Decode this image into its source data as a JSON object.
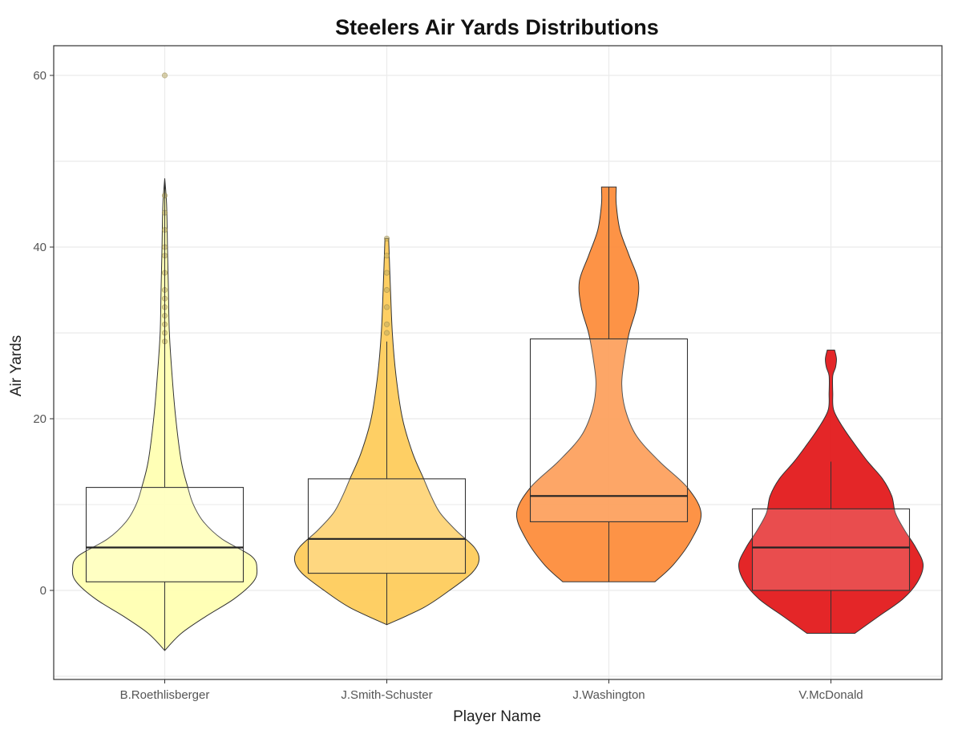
{
  "chart_data": {
    "type": "violin",
    "title": "Steelers Air Yards Distributions",
    "xlabel": "Player Name",
    "ylabel": "Air Yards",
    "ylim": [
      -10,
      63
    ],
    "yticks": [
      0,
      20,
      40,
      60
    ],
    "grid": true,
    "categories": [
      "B.Roethlisberger",
      "J.Smith-Schuster",
      "J.Washington",
      "V.McDonald"
    ],
    "colors": [
      "#FFFFB2",
      "#FECC5C",
      "#FD8D3C",
      "#E31A1C"
    ],
    "distributions": [
      {
        "name": "B.Roethlisberger",
        "min": -7,
        "q1": 1,
        "median": 5,
        "q3": 12,
        "whisker_high": 48,
        "max": 60,
        "outliers": [
          29,
          30,
          31,
          32,
          33,
          34,
          35,
          37,
          39,
          40,
          42,
          44,
          46,
          60
        ],
        "density": [
          [
            -7,
            0.0
          ],
          [
            -5,
            0.18
          ],
          [
            -3,
            0.45
          ],
          [
            -1,
            0.75
          ],
          [
            1,
            0.96
          ],
          [
            2.5,
            1.0
          ],
          [
            4,
            0.94
          ],
          [
            6,
            0.62
          ],
          [
            8,
            0.42
          ],
          [
            10,
            0.31
          ],
          [
            12,
            0.25
          ],
          [
            15,
            0.18
          ],
          [
            20,
            0.12
          ],
          [
            25,
            0.08
          ],
          [
            30,
            0.05
          ],
          [
            35,
            0.04
          ],
          [
            40,
            0.03
          ],
          [
            45,
            0.02
          ],
          [
            48,
            0.0
          ]
        ]
      },
      {
        "name": "J.Smith-Schuster",
        "min": -4,
        "q1": 2,
        "median": 6,
        "q3": 13,
        "whisker_high": 29,
        "max": 41,
        "outliers": [
          30,
          31,
          33,
          35,
          37,
          39,
          41
        ],
        "density": [
          [
            -4,
            0.0
          ],
          [
            -2,
            0.4
          ],
          [
            0,
            0.68
          ],
          [
            2,
            0.92
          ],
          [
            3.5,
            1.0
          ],
          [
            5,
            0.95
          ],
          [
            7,
            0.75
          ],
          [
            9,
            0.58
          ],
          [
            11,
            0.48
          ],
          [
            13,
            0.4
          ],
          [
            16,
            0.28
          ],
          [
            20,
            0.17
          ],
          [
            25,
            0.1
          ],
          [
            30,
            0.06
          ],
          [
            35,
            0.04
          ],
          [
            41,
            0.02
          ]
        ]
      },
      {
        "name": "J.Washington",
        "min": 1,
        "q1": 8,
        "median": 11,
        "q3": 29.3,
        "whisker_high": 47,
        "max": 47,
        "outliers": [],
        "density": [
          [
            1,
            0.5
          ],
          [
            3,
            0.7
          ],
          [
            6,
            0.9
          ],
          [
            9,
            1.0
          ],
          [
            12,
            0.85
          ],
          [
            15,
            0.55
          ],
          [
            18,
            0.3
          ],
          [
            21,
            0.18
          ],
          [
            24,
            0.14
          ],
          [
            27,
            0.17
          ],
          [
            30,
            0.22
          ],
          [
            33,
            0.3
          ],
          [
            36,
            0.32
          ],
          [
            39,
            0.22
          ],
          [
            42,
            0.12
          ],
          [
            45,
            0.08
          ],
          [
            47,
            0.08
          ]
        ]
      },
      {
        "name": "V.McDonald",
        "min": -5,
        "q1": 0,
        "median": 5,
        "q3": 9.5,
        "whisker_high": 15,
        "max": 28,
        "outliers": [],
        "density": [
          [
            -5,
            0.26
          ],
          [
            -3,
            0.52
          ],
          [
            -1,
            0.78
          ],
          [
            1,
            0.94
          ],
          [
            3,
            1.0
          ],
          [
            5,
            0.92
          ],
          [
            7,
            0.8
          ],
          [
            9,
            0.7
          ],
          [
            11,
            0.66
          ],
          [
            13,
            0.56
          ],
          [
            15,
            0.4
          ],
          [
            17,
            0.26
          ],
          [
            19,
            0.13
          ],
          [
            21,
            0.03
          ],
          [
            23,
            0.02
          ],
          [
            25,
            0.02
          ],
          [
            26,
            0.05
          ],
          [
            27,
            0.06
          ],
          [
            28,
            0.04
          ]
        ]
      }
    ]
  }
}
